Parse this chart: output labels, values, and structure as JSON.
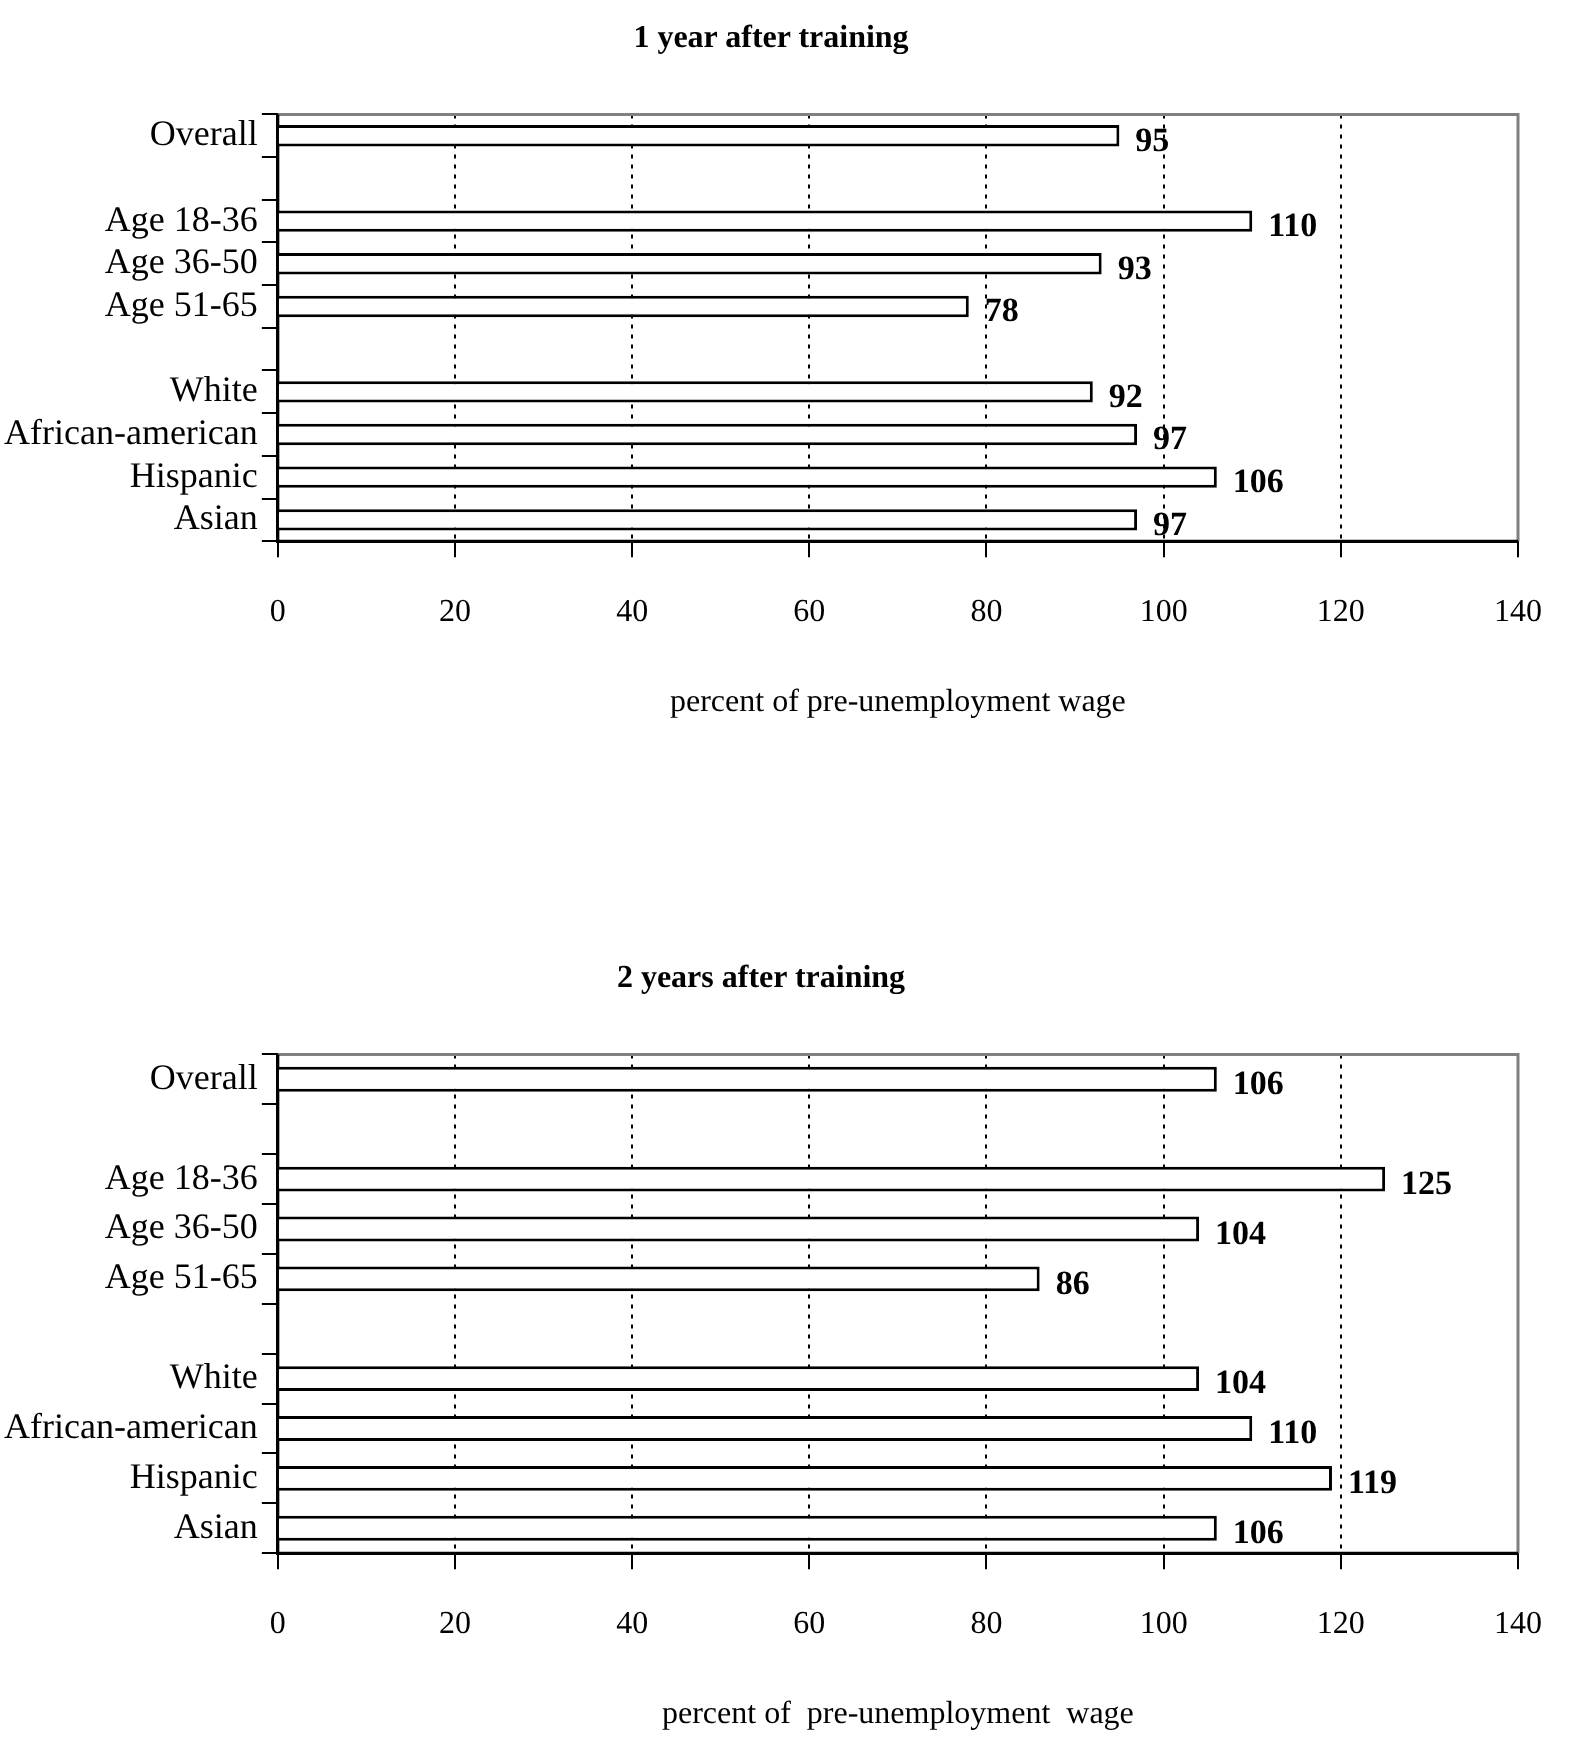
{
  "chart_data": [
    {
      "type": "bar",
      "orientation": "horizontal",
      "title": "1 year after training",
      "xlabel": "percent of pre-unemployment wage",
      "categories": [
        "Overall",
        null,
        "Age 18-36",
        "Age 36-50",
        "Age 51-65",
        null,
        "White",
        "African-american",
        "Hispanic",
        "Asian"
      ],
      "values": [
        95,
        null,
        110,
        93,
        78,
        null,
        92,
        97,
        106,
        97
      ],
      "color": "#ffffff",
      "xlim": [
        0,
        140
      ],
      "xticks": [
        0,
        20,
        40,
        60,
        80,
        100,
        120,
        140
      ],
      "grid": "x",
      "data_labels": true,
      "legend": false
    },
    {
      "type": "bar",
      "orientation": "horizontal",
      "title": "2 years after training",
      "xlabel": "percent of  pre-unemployment  wage",
      "categories": [
        "Overall",
        null,
        "Age 18-36",
        "Age 36-50",
        "Age 51-65",
        null,
        "White",
        "African-american",
        "Hispanic",
        "Asian"
      ],
      "values": [
        106,
        null,
        125,
        104,
        86,
        null,
        104,
        110,
        119,
        106
      ],
      "color": "#ffffff",
      "xlim": [
        0,
        140
      ],
      "xticks": [
        0,
        20,
        40,
        60,
        80,
        100,
        120,
        140
      ],
      "grid": "x",
      "data_labels": true,
      "legend": false
    }
  ]
}
